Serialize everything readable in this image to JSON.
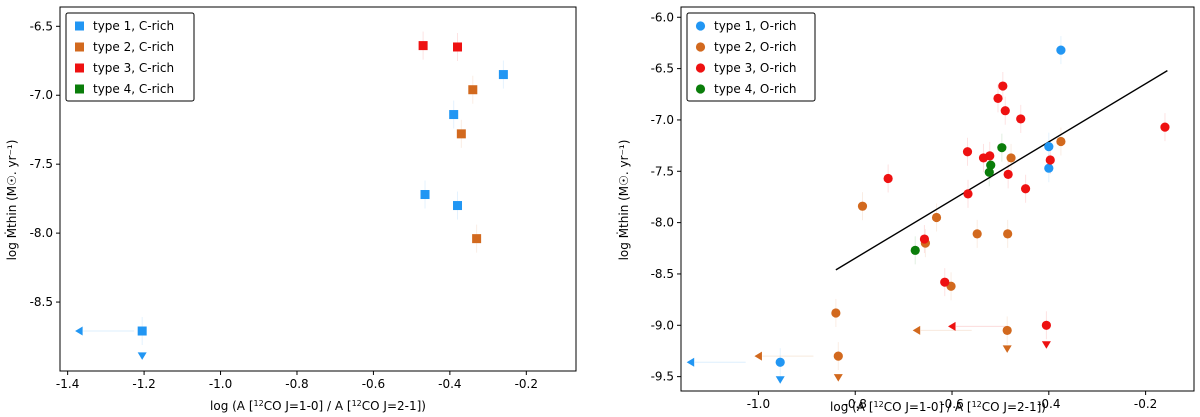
{
  "chart_data": [
    {
      "type": "scatter",
      "title": "",
      "xlabel_prefix": "log (A [",
      "xlabel_sup1": "12",
      "xlabel_mid": "CO J=1-0] / A [",
      "xlabel_sup2": "12",
      "xlabel_end": "CO J=2-1])",
      "ylabel": "log Ṁthin (M☉. yr⁻¹)",
      "xlim": [
        -1.42,
        -0.07
      ],
      "ylim": [
        -9.0,
        -6.36
      ],
      "xticks": [
        "-1.4",
        "-1.2",
        "-1.0",
        "-0.8",
        "-0.6",
        "-0.4",
        "-0.2"
      ],
      "xtick_values": [
        -1.4,
        -1.2,
        -1.0,
        -0.8,
        -0.6,
        -0.4,
        -0.2
      ],
      "yticks": [
        "-6.5",
        "-7.0",
        "-7.5",
        "-8.0",
        "-8.5"
      ],
      "ytick_values": [
        -6.5,
        -7.0,
        -7.5,
        -8.0,
        -8.5
      ],
      "legend_position": "top-left",
      "marker": "square",
      "series": [
        {
          "name": "type 1, C-rich",
          "color": "#2196f3",
          "points": [
            [
              -0.26,
              -6.85
            ],
            [
              -0.39,
              -7.14
            ],
            [
              -0.465,
              -7.72
            ],
            [
              -0.38,
              -7.8
            ],
            [
              -1.205,
              -8.71
            ]
          ],
          "upper_limits": [
            [
              -1.205,
              -8.89
            ]
          ],
          "left_limits": [
            [
              -1.37,
              -8.71
            ]
          ]
        },
        {
          "name": "type 2, C-rich",
          "color": "#d2691e",
          "points": [
            [
              -0.34,
              -6.96
            ],
            [
              -0.37,
              -7.28
            ],
            [
              -0.33,
              -8.04
            ]
          ],
          "upper_limits": [],
          "left_limits": []
        },
        {
          "name": "type 3, C-rich",
          "color": "#ee1111",
          "points": [
            [
              -0.47,
              -6.64
            ],
            [
              -0.38,
              -6.65
            ]
          ],
          "upper_limits": [],
          "left_limits": []
        },
        {
          "name": "type 4, C-rich",
          "color": "#0a7d0a",
          "points": [],
          "upper_limits": [],
          "left_limits": []
        }
      ]
    },
    {
      "type": "scatter",
      "title": "",
      "xlabel_prefix": "log (A [",
      "xlabel_sup1": "12",
      "xlabel_mid": "CO J=1-0] / A [",
      "xlabel_sup2": "12",
      "xlabel_end": "CO J=2-1])",
      "ylabel": "log Ṁthin (M☉. yr⁻¹)",
      "xlim": [
        -1.16,
        -0.1
      ],
      "ylim": [
        -9.64,
        -5.9
      ],
      "xticks": [
        "-1.0",
        "-0.8",
        "-0.6",
        "-0.4",
        "-0.2"
      ],
      "xtick_values": [
        -1.0,
        -0.8,
        -0.6,
        -0.4,
        -0.2
      ],
      "yticks": [
        "-6.0",
        "-6.5",
        "-7.0",
        "-7.5",
        "-8.0",
        "-8.5",
        "-9.0",
        "-9.5"
      ],
      "ytick_values": [
        -6.0,
        -6.5,
        -7.0,
        -7.5,
        -8.0,
        -8.5,
        -9.0,
        -9.5
      ],
      "legend_position": "top-left",
      "marker": "circle",
      "fit_line": {
        "x": [
          -0.84,
          -0.155
        ],
        "y": [
          -8.46,
          -6.52
        ]
      },
      "series": [
        {
          "name": "type 1, O-rich",
          "color": "#2196f3",
          "points": [
            [
              -0.375,
              -6.32
            ],
            [
              -0.4,
              -7.26
            ],
            [
              -0.4,
              -7.47
            ],
            [
              -0.955,
              -9.36
            ]
          ],
          "upper_limits": [
            [
              -0.955,
              -9.53
            ]
          ],
          "left_limits": [
            [
              -1.14,
              -9.36
            ]
          ]
        },
        {
          "name": "type 2, O-rich",
          "color": "#d2691e",
          "points": [
            [
              -0.375,
              -7.21
            ],
            [
              -0.478,
              -7.37
            ],
            [
              -0.785,
              -7.84
            ],
            [
              -0.632,
              -7.95
            ],
            [
              -0.548,
              -8.11
            ],
            [
              -0.485,
              -8.11
            ],
            [
              -0.655,
              -8.2
            ],
            [
              -0.602,
              -8.62
            ],
            [
              -0.84,
              -8.88
            ],
            [
              -0.486,
              -9.05
            ],
            [
              -0.835,
              -9.3
            ]
          ],
          "upper_limits": [
            [
              -0.486,
              -9.23
            ],
            [
              -0.835,
              -9.51
            ]
          ],
          "left_limits": [
            [
              -0.673,
              -9.05
            ],
            [
              -1.0,
              -9.3
            ]
          ]
        },
        {
          "name": "type 3, O-rich",
          "color": "#ee1111",
          "points": [
            [
              -0.495,
              -6.67
            ],
            [
              -0.505,
              -6.79
            ],
            [
              -0.49,
              -6.91
            ],
            [
              -0.458,
              -6.99
            ],
            [
              -0.16,
              -7.07
            ],
            [
              -0.568,
              -7.31
            ],
            [
              -0.522,
              -7.35
            ],
            [
              -0.535,
              -7.37
            ],
            [
              -0.397,
              -7.39
            ],
            [
              -0.732,
              -7.57
            ],
            [
              -0.484,
              -7.53
            ],
            [
              -0.448,
              -7.67
            ],
            [
              -0.567,
              -7.72
            ],
            [
              -0.657,
              -8.16
            ],
            [
              -0.615,
              -8.58
            ],
            [
              -0.405,
              -9.0
            ]
          ],
          "upper_limits": [
            [
              -0.405,
              -9.19
            ]
          ],
          "left_limits": [
            [
              -0.6,
              -9.01
            ]
          ]
        },
        {
          "name": "type 4, O-rich",
          "color": "#0a7d0a",
          "points": [
            [
              -0.497,
              -7.27
            ],
            [
              -0.52,
              -7.44
            ],
            [
              -0.523,
              -7.51
            ],
            [
              -0.676,
              -8.27
            ]
          ],
          "upper_limits": [],
          "left_limits": []
        }
      ]
    }
  ]
}
